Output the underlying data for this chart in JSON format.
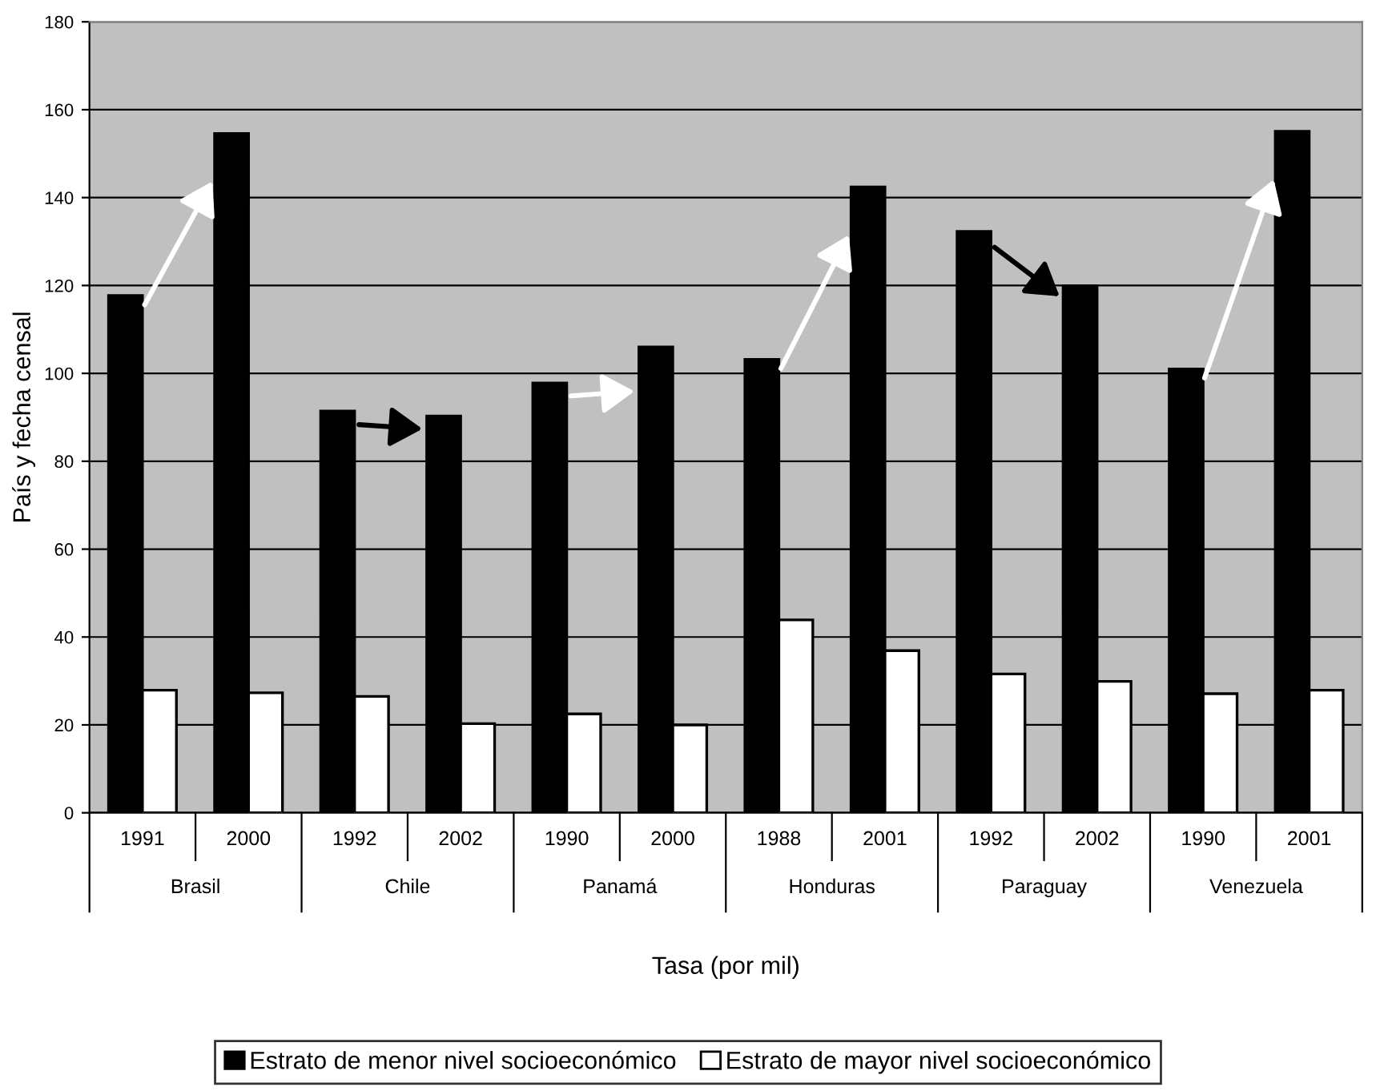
{
  "chart_data": {
    "type": "bar",
    "xlabel": "Tasa (por mil)",
    "ylabel": "País y fecha censal",
    "categories": [
      "1991",
      "2000",
      "1992",
      "2002",
      "1990",
      "2000",
      "1988",
      "2001",
      "1992",
      "2002",
      "1990",
      "2001"
    ],
    "annotations": [
      "Brasil",
      "Chile",
      "Panamá",
      "Honduras",
      "Paraguay",
      "Venezuela"
    ],
    "series": [
      {
        "name": "Estrato de menor nivel socioeconómico",
        "color": "#000000",
        "values": [
          117.7,
          154.6,
          91.4,
          90.3,
          97.8,
          106,
          103.2,
          142.4,
          132.3,
          119.9,
          101,
          155.1
        ]
      },
      {
        "name": "Estrato de mayor nivel socioeconómico",
        "color": "#ffffff",
        "values": [
          27.9,
          27.3,
          26.5,
          20.3,
          22.5,
          20,
          43.9,
          36.9,
          31.6,
          29.9,
          27.1,
          27.9
        ]
      }
    ],
    "ylim": [
      0,
      180
    ],
    "yticks": [
      0,
      20,
      40,
      60,
      80,
      100,
      120,
      140,
      160,
      180
    ],
    "grid": "y",
    "legend": "bottom"
  }
}
